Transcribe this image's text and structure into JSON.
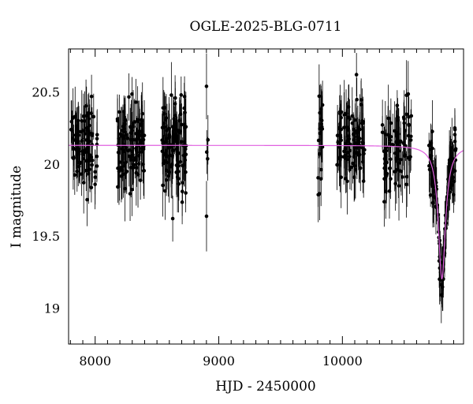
{
  "chart_data": {
    "type": "scatter",
    "title": "OGLE-2025-BLG-0711",
    "xlabel": "HJD - 2450000",
    "ylabel": "I magnitude",
    "xlim": [
      7785,
      10980
    ],
    "ylim": [
      20.8,
      18.75
    ],
    "y_inverted": true,
    "grid": false,
    "xticks_major": [
      8000,
      9000,
      10000
    ],
    "yticks_major": [
      19,
      19.5,
      20,
      20.5
    ],
    "colors": {
      "points": "#000000",
      "model": "#e060e0"
    },
    "series": [
      {
        "kind": "photometry",
        "seasons": [
          {
            "x_range": [
              7800,
              8020
            ],
            "n": 90,
            "mean": 20.12,
            "scatter": 0.14,
            "err": [
              0.1,
              0.22
            ]
          },
          {
            "x_range": [
              8180,
              8400
            ],
            "n": 110,
            "mean": 20.14,
            "scatter": 0.15,
            "err": [
              0.1,
              0.25
            ]
          },
          {
            "x_range": [
              8540,
              8740
            ],
            "n": 110,
            "mean": 20.13,
            "scatter": 0.15,
            "err": [
              0.1,
              0.25
            ]
          },
          {
            "x_range": [
              8900,
              8915
            ],
            "n": 5,
            "mean": 20.15,
            "scatter": 0.2,
            "err": [
              0.15,
              0.25
            ]
          },
          {
            "x_range": [
              9800,
              9840
            ],
            "n": 20,
            "mean": 20.12,
            "scatter": 0.18,
            "err": [
              0.12,
              0.25
            ]
          },
          {
            "x_range": [
              9950,
              10180
            ],
            "n": 100,
            "mean": 20.13,
            "scatter": 0.15,
            "err": [
              0.1,
              0.25
            ]
          },
          {
            "x_range": [
              10320,
              10560
            ],
            "n": 80,
            "mean": 20.12,
            "scatter": 0.15,
            "err": [
              0.1,
              0.25
            ]
          },
          {
            "x_range": [
              10700,
              10920
            ],
            "n": 110,
            "mean": 20.12,
            "scatter": 0.13,
            "err": [
              0.08,
              0.22
            ]
          }
        ]
      },
      {
        "kind": "model",
        "baseline": 20.13,
        "peak_x": 10805,
        "peak_mag": 19.2,
        "width": 35
      }
    ]
  }
}
